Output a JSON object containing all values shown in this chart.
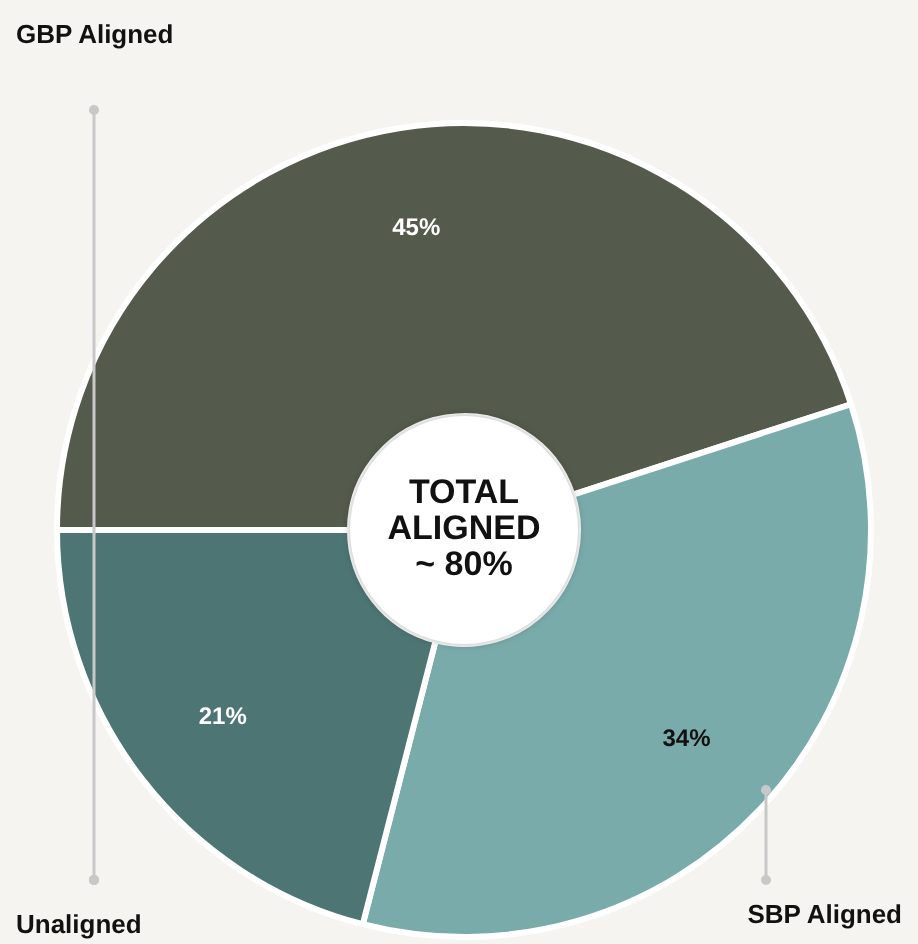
{
  "chart_data": {
    "type": "donut",
    "categories": [
      "GBP Aligned",
      "SBP Aligned",
      "Unaligned"
    ],
    "values": [
      45,
      34,
      21
    ],
    "colors": [
      "#545a4c",
      "#7aabab",
      "#4d7574"
    ],
    "value_labels": [
      "45%",
      "34%",
      "21%"
    ],
    "legend": false,
    "annotations": [
      "TOTAL\nALIGNED\n~ 80%"
    ]
  }
}
